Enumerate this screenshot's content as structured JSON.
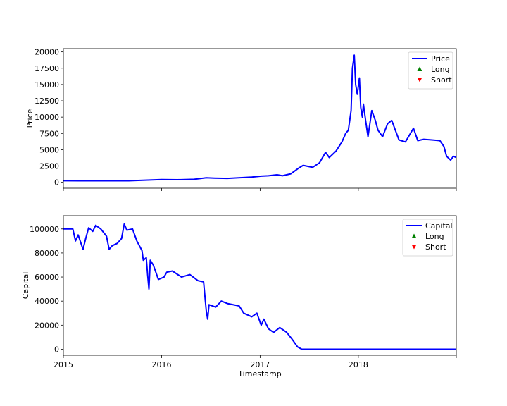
{
  "chart_data": [
    {
      "type": "line",
      "xlabel": "",
      "ylabel": "Price",
      "xlim": [
        "2015-01-01",
        "2018-12-31"
      ],
      "ylim": [
        -900,
        20500
      ],
      "yticks": [
        0,
        2500,
        5000,
        7500,
        10000,
        12500,
        15000,
        17500,
        20000
      ],
      "ytick_labels": [
        "0",
        "2500",
        "5000",
        "7500",
        "10000",
        "12500",
        "15000",
        "17500",
        "20000"
      ],
      "xticks": [
        "2015-01-01",
        "2016-01-01",
        "2017-01-01",
        "2018-01-01"
      ],
      "xtick_labels": [
        "",
        "",
        "",
        ""
      ],
      "legend": {
        "position": "top-right",
        "entries": [
          "Price",
          "Long",
          "Short"
        ]
      },
      "colors": {
        "line": "#0000ff",
        "long": "#008000",
        "short": "#ff0000"
      },
      "series": [
        {
          "name": "Price",
          "x": [
            "2015-01-01",
            "2015-03-01",
            "2015-06-01",
            "2015-09-01",
            "2015-11-01",
            "2016-01-01",
            "2016-03-01",
            "2016-05-01",
            "2016-06-15",
            "2016-07-15",
            "2016-09-01",
            "2016-12-01",
            "2017-01-05",
            "2017-02-01",
            "2017-03-05",
            "2017-03-25",
            "2017-04-25",
            "2017-05-25",
            "2017-06-10",
            "2017-07-15",
            "2017-08-10",
            "2017-09-01",
            "2017-09-15",
            "2017-10-10",
            "2017-11-01",
            "2017-11-15",
            "2017-11-25",
            "2017-12-05",
            "2017-12-10",
            "2017-12-17",
            "2017-12-22",
            "2017-12-28",
            "2018-01-05",
            "2018-01-10",
            "2018-01-16",
            "2018-01-20",
            "2018-01-28",
            "2018-02-06",
            "2018-02-20",
            "2018-03-05",
            "2018-03-15",
            "2018-04-01",
            "2018-04-20",
            "2018-05-05",
            "2018-06-01",
            "2018-06-25",
            "2018-07-25",
            "2018-08-10",
            "2018-09-01",
            "2018-10-01",
            "2018-10-31",
            "2018-11-15",
            "2018-11-25",
            "2018-12-10",
            "2018-12-20",
            "2018-12-31"
          ],
          "y": [
            250,
            240,
            230,
            240,
            330,
            420,
            400,
            460,
            700,
            650,
            600,
            800,
            950,
            1000,
            1150,
            1000,
            1300,
            2200,
            2600,
            2300,
            3000,
            4600,
            3800,
            4800,
            6200,
            7500,
            8000,
            11000,
            17500,
            19500,
            15000,
            13500,
            16000,
            11500,
            10000,
            12000,
            9500,
            7000,
            11000,
            9500,
            8000,
            7000,
            9000,
            9500,
            6500,
            6200,
            8300,
            6400,
            6600,
            6500,
            6400,
            5500,
            4000,
            3400,
            4000,
            3800
          ]
        },
        {
          "name": "Long",
          "x": [],
          "y": []
        },
        {
          "name": "Short",
          "x": [],
          "y": []
        }
      ]
    },
    {
      "type": "line",
      "xlabel": "Timestamp",
      "ylabel": "Capital",
      "xlim": [
        "2015-01-01",
        "2018-12-31"
      ],
      "ylim": [
        -5000,
        111000
      ],
      "yticks": [
        0,
        20000,
        40000,
        60000,
        80000,
        100000
      ],
      "ytick_labels": [
        "0",
        "20000",
        "40000",
        "60000",
        "80000",
        "100000"
      ],
      "xticks": [
        "2015-01-01",
        "2016-01-01",
        "2017-01-01",
        "2018-01-01"
      ],
      "xtick_labels": [
        "2015",
        "2016",
        "2017",
        "2018"
      ],
      "legend": {
        "position": "top-right",
        "entries": [
          "Capital",
          "Long",
          "Short"
        ]
      },
      "colors": {
        "line": "#0000ff",
        "long": "#008000",
        "short": "#ff0000"
      },
      "series": [
        {
          "name": "Capital",
          "x": [
            "2015-01-01",
            "2015-02-05",
            "2015-02-15",
            "2015-02-25",
            "2015-03-15",
            "2015-03-25",
            "2015-04-05",
            "2015-04-20",
            "2015-05-01",
            "2015-05-20",
            "2015-06-10",
            "2015-06-20",
            "2015-07-01",
            "2015-07-20",
            "2015-08-05",
            "2015-08-15",
            "2015-08-25",
            "2015-09-15",
            "2015-10-01",
            "2015-10-20",
            "2015-10-25",
            "2015-11-05",
            "2015-11-10",
            "2015-11-15",
            "2015-11-20",
            "2015-12-01",
            "2015-12-20",
            "2016-01-10",
            "2016-01-20",
            "2016-02-10",
            "2016-03-15",
            "2016-04-15",
            "2016-05-15",
            "2016-06-05",
            "2016-06-15",
            "2016-06-20",
            "2016-06-25",
            "2016-07-20",
            "2016-08-10",
            "2016-09-01",
            "2016-10-15",
            "2016-11-01",
            "2016-12-01",
            "2016-12-20",
            "2017-01-05",
            "2017-01-15",
            "2017-02-01",
            "2017-02-20",
            "2017-03-15",
            "2017-04-10",
            "2017-05-01",
            "2017-05-20",
            "2017-06-05",
            "2017-06-12",
            "2017-12-31",
            "2018-12-31"
          ],
          "y": [
            100000,
            100000,
            90000,
            95000,
            83000,
            92000,
            101000,
            98000,
            103000,
            100000,
            94000,
            83000,
            86000,
            88000,
            92000,
            104000,
            99000,
            100000,
            90000,
            82000,
            74000,
            76000,
            62000,
            50000,
            74000,
            70000,
            58000,
            60000,
            64000,
            65000,
            60000,
            62000,
            57000,
            56000,
            32000,
            25000,
            37000,
            35000,
            40000,
            38000,
            36000,
            30000,
            27000,
            30000,
            20000,
            25000,
            17000,
            14000,
            18000,
            14000,
            8000,
            2000,
            0,
            0,
            0,
            0
          ]
        },
        {
          "name": "Long",
          "x": [],
          "y": []
        },
        {
          "name": "Short",
          "x": [],
          "y": []
        }
      ]
    }
  ]
}
